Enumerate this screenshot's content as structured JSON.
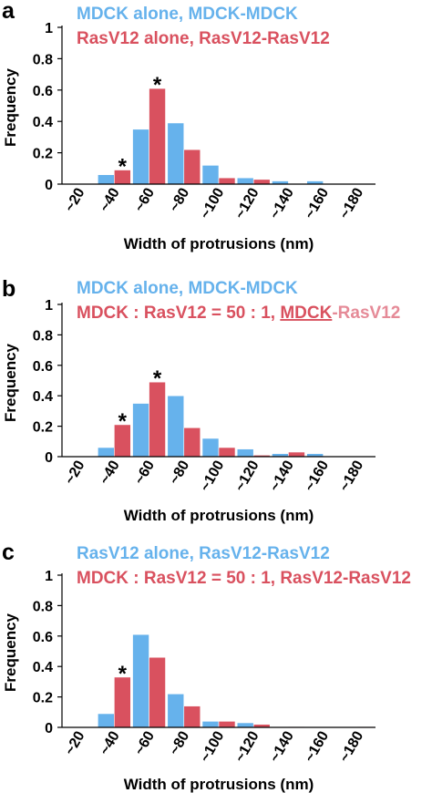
{
  "colors": {
    "blue": "#66b2ec",
    "red": "#d9515f",
    "pink": "#e58a97",
    "axis": "#000000"
  },
  "chart_data": [
    {
      "panel": "a",
      "type": "bar",
      "categories": [
        "~20",
        "~40",
        "~60",
        "~80",
        "~100",
        "~120",
        "~140",
        "~160",
        "~180"
      ],
      "series": [
        {
          "name": "MDCK alone, MDCK-MDCK",
          "color": "blue",
          "values": [
            0,
            0.06,
            0.35,
            0.39,
            0.12,
            0.04,
            0.02,
            0.02,
            0
          ]
        },
        {
          "name": "RasV12 alone, RasV12-RasV12",
          "color": "red",
          "values": [
            0,
            0.09,
            0.61,
            0.22,
            0.04,
            0.03,
            0,
            0,
            0
          ]
        }
      ],
      "legend_lines": [
        [
          {
            "text": "MDCK alone, MDCK-MDCK",
            "color": "blue"
          }
        ],
        [
          {
            "text": "RasV12 alone, RasV12-RasV12",
            "color": "red"
          }
        ]
      ],
      "annotations": [
        {
          "text": "*",
          "category": 1,
          "series": 1
        },
        {
          "text": "*",
          "category": 2,
          "series": 1
        }
      ],
      "ylabel": "Frequency",
      "xlabel": "Width of protrusions (nm)",
      "yticks": [
        "0",
        "0.2",
        "0.4",
        "0.6",
        "0.8",
        "1"
      ],
      "ylim": [
        0,
        1
      ]
    },
    {
      "panel": "b",
      "type": "bar",
      "categories": [
        "~20",
        "~40",
        "~60",
        "~80",
        "~100",
        "~120",
        "~140",
        "~160",
        "~180"
      ],
      "series": [
        {
          "name": "MDCK alone, MDCK-MDCK",
          "color": "blue",
          "values": [
            0,
            0.06,
            0.35,
            0.4,
            0.12,
            0.05,
            0.02,
            0.02,
            0
          ]
        },
        {
          "name": "MDCK : RasV12 = 50 : 1, MDCK-RasV12",
          "color": "red",
          "values": [
            0,
            0.21,
            0.49,
            0.19,
            0.06,
            0.01,
            0.03,
            0,
            0
          ]
        }
      ],
      "legend_lines": [
        [
          {
            "text": "MDCK alone, MDCK-MDCK",
            "color": "blue"
          }
        ],
        [
          {
            "text": "MDCK : RasV12 = 50 : 1, ",
            "color": "red"
          },
          {
            "text": "MDCK",
            "color": "red",
            "underline": true
          },
          {
            "text": "-RasV12",
            "color": "pink"
          }
        ]
      ],
      "annotations": [
        {
          "text": "*",
          "category": 1,
          "series": 1
        },
        {
          "text": "*",
          "category": 2,
          "series": 1
        }
      ],
      "ylabel": "Frequency",
      "xlabel": "Width of protrusions (nm)",
      "yticks": [
        "0",
        "0.2",
        "0.4",
        "0.6",
        "0.8",
        "1"
      ],
      "ylim": [
        0,
        1
      ]
    },
    {
      "panel": "c",
      "type": "bar",
      "categories": [
        "~20",
        "~40",
        "~60",
        "~80",
        "~100",
        "~120",
        "~140",
        "~160",
        "~180"
      ],
      "series": [
        {
          "name": "RasV12 alone, RasV12-RasV12",
          "color": "blue",
          "values": [
            0,
            0.09,
            0.61,
            0.22,
            0.04,
            0.03,
            0,
            0,
            0
          ]
        },
        {
          "name": "MDCK : RasV12 = 50 : 1, RasV12-RasV12",
          "color": "red",
          "values": [
            0,
            0.33,
            0.46,
            0.14,
            0.04,
            0.02,
            0.005,
            0,
            0.005
          ]
        }
      ],
      "legend_lines": [
        [
          {
            "text": "RasV12 alone, RasV12-RasV12",
            "color": "blue"
          }
        ],
        [
          {
            "text": "MDCK : RasV12 = 50 : 1, RasV12-RasV12",
            "color": "red"
          }
        ]
      ],
      "annotations": [
        {
          "text": "*",
          "category": 1,
          "series": 1
        }
      ],
      "ylabel": "Frequency",
      "xlabel": "Width of protrusions (nm)",
      "yticks": [
        "0",
        "0.2",
        "0.4",
        "0.6",
        "0.8",
        "1"
      ],
      "ylim": [
        0,
        1
      ]
    }
  ]
}
